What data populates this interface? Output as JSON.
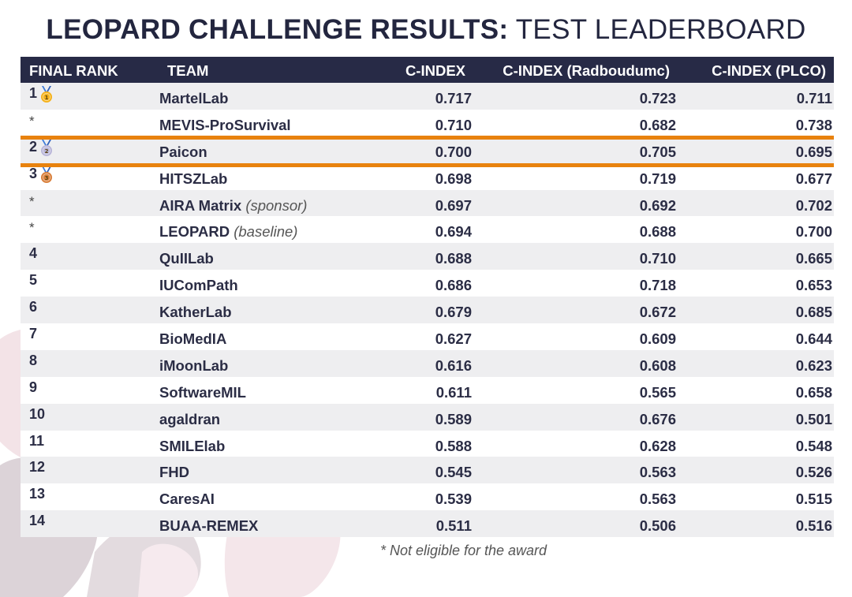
{
  "title": {
    "bold": "LEOPARD CHALLENGE RESULTS:",
    "light": "TEST LEADERBOARD"
  },
  "columns": {
    "rank": "FINAL RANK",
    "team": "TEAM",
    "cindex": "C-INDEX",
    "cindex_radboud": "C-INDEX (Radboudumc)",
    "cindex_plco": "C-INDEX (PLCO)"
  },
  "rows": [
    {
      "rank": "1",
      "medal": "gold",
      "team": "MartelLab",
      "note": "",
      "c": "0.717",
      "r": "0.723",
      "p": "0.711"
    },
    {
      "rank": "*",
      "medal": "",
      "team": "MEVIS-ProSurvival",
      "note": "",
      "c": "0.710",
      "r": "0.682",
      "p": "0.738"
    },
    {
      "rank": "2",
      "medal": "silver",
      "team": "Paicon",
      "note": "",
      "c": "0.700",
      "r": "0.705",
      "p": "0.695"
    },
    {
      "rank": "3",
      "medal": "bronze",
      "team": "HITSZLab",
      "note": "",
      "c": "0.698",
      "r": "0.719",
      "p": "0.677"
    },
    {
      "rank": "*",
      "medal": "",
      "team": "AIRA Matrix",
      "note": "(sponsor)",
      "c": "0.697",
      "r": "0.692",
      "p": "0.702"
    },
    {
      "rank": "*",
      "medal": "",
      "team": "LEOPARD",
      "note": "(baseline)",
      "c": "0.694",
      "r": "0.688",
      "p": "0.700"
    },
    {
      "rank": "4",
      "medal": "",
      "team": "QuIILab",
      "note": "",
      "c": "0.688",
      "r": "0.710",
      "p": "0.665"
    },
    {
      "rank": "5",
      "medal": "",
      "team": "IUComPath",
      "note": "",
      "c": "0.686",
      "r": "0.718",
      "p": "0.653"
    },
    {
      "rank": "6",
      "medal": "",
      "team": "KatherLab",
      "note": "",
      "c": "0.679",
      "r": "0.672",
      "p": "0.685"
    },
    {
      "rank": "7",
      "medal": "",
      "team": "BioMedIA",
      "note": "",
      "c": "0.627",
      "r": "0.609",
      "p": "0.644"
    },
    {
      "rank": "8",
      "medal": "",
      "team": "iMoonLab",
      "note": "",
      "c": "0.616",
      "r": "0.608",
      "p": "0.623"
    },
    {
      "rank": "9",
      "medal": "",
      "team": "SoftwareMIL",
      "note": "",
      "c": "0.611",
      "r": "0.565",
      "p": "0.658"
    },
    {
      "rank": "10",
      "medal": "",
      "team": "agaldran",
      "note": "",
      "c": "0.589",
      "r": "0.676",
      "p": "0.501"
    },
    {
      "rank": "11",
      "medal": "",
      "team": "SMILElab",
      "note": "",
      "c": "0.588",
      "r": "0.628",
      "p": "0.548"
    },
    {
      "rank": "12",
      "medal": "",
      "team": "FHD",
      "note": "",
      "c": "0.545",
      "r": "0.563",
      "p": "0.526"
    },
    {
      "rank": "13",
      "medal": "",
      "team": "CaresAI",
      "note": "",
      "c": "0.539",
      "r": "0.563",
      "p": "0.515"
    },
    {
      "rank": "14",
      "medal": "",
      "team": "BUAA-REMEX",
      "note": "",
      "c": "0.511",
      "r": "0.506",
      "p": "0.516"
    }
  ],
  "highlight_team": "Paicon",
  "footnote": "* Not eligible for the award",
  "colors": {
    "header_bg": "#272a46",
    "highlight": "#e8820e",
    "row_alt": "#eeeef0",
    "gold": "#f5b21b",
    "silver": "#b9b6d9",
    "bronze": "#d9803c"
  }
}
